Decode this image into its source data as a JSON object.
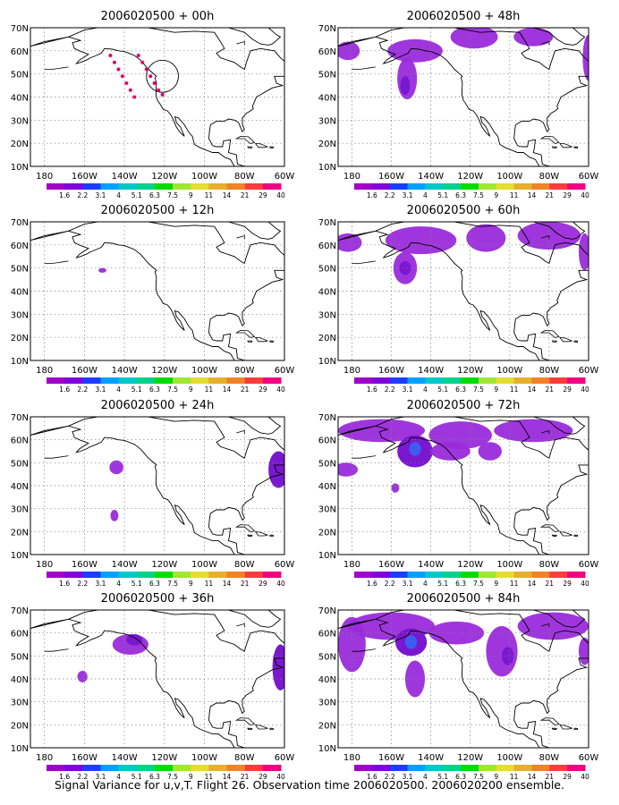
{
  "figure_caption": "Signal Variance for u,v,T. Flight 26. Observation time 2006020500. 2006020200 ensemble.",
  "shared_axes": {
    "x_ticks": [
      "180",
      "160W",
      "140W",
      "120W",
      "100W",
      "80W",
      "60W"
    ],
    "x_values": [
      -180,
      -160,
      -140,
      -120,
      -100,
      -80,
      -60
    ],
    "y_ticks": [
      "10N",
      "20N",
      "30N",
      "40N",
      "50N",
      "60N",
      "70N"
    ],
    "y_values": [
      10,
      20,
      30,
      40,
      50,
      60,
      70
    ],
    "xlim": [
      -187,
      -60
    ],
    "ylim": [
      10,
      70
    ],
    "grid": true
  },
  "colorbar": {
    "labels": [
      "1.6",
      "2.2",
      "3.1",
      "4",
      "5.1",
      "6.3",
      "7.5",
      "9",
      "11",
      "14",
      "21",
      "29",
      "40"
    ],
    "colors": [
      "#a000c8",
      "#8200dc",
      "#1e3cff",
      "#00a0ff",
      "#00c8c8",
      "#00d28c",
      "#00dc00",
      "#a0e632",
      "#e6dc32",
      "#e6af2d",
      "#f08228",
      "#fa3c3c",
      "#f00082"
    ]
  },
  "colors": {
    "signal_light": "#9a2bdb",
    "signal_medium": "#7a18cf",
    "signal_strong": "#3b5ef0",
    "observation_dots": "#e0006a",
    "coast": "#000000",
    "grid": "#808080"
  },
  "chart_data": [
    {
      "type": "heatmap",
      "title": "2006020500 + 00h",
      "region": "North America & NE Pacific",
      "observations": [
        [
          -147,
          58
        ],
        [
          -145,
          55
        ],
        [
          -143,
          52
        ],
        [
          -141,
          49
        ],
        [
          -139,
          46
        ],
        [
          -137,
          43
        ],
        [
          -133,
          58
        ],
        [
          -131,
          55
        ],
        [
          -129,
          52
        ],
        [
          -127,
          49
        ],
        [
          -125,
          46
        ],
        [
          -123,
          43
        ],
        [
          -121,
          41
        ],
        [
          -135,
          40
        ]
      ],
      "circle": {
        "center": [
          -121,
          49
        ],
        "radius_deg": 8
      },
      "blobs": []
    },
    {
      "type": "heatmap",
      "title": "2006020500 + 12h",
      "region": "North America & NE Pacific",
      "blobs": [
        {
          "lon": -151,
          "lat": 49,
          "rx": 2,
          "ry": 1,
          "level": "light"
        }
      ]
    },
    {
      "type": "heatmap",
      "title": "2006020500 + 24h",
      "region": "North America & NE Pacific",
      "blobs": [
        {
          "lon": -144,
          "lat": 48,
          "rx": 3.5,
          "ry": 3,
          "level": "light"
        },
        {
          "lon": -145,
          "lat": 27,
          "rx": 2,
          "ry": 2.5,
          "level": "light"
        },
        {
          "lon": -63,
          "lat": 47,
          "rx": 5,
          "ry": 8,
          "level": "medium"
        }
      ]
    },
    {
      "type": "heatmap",
      "title": "2006020500 + 36h",
      "region": "North America & NE Pacific",
      "blobs": [
        {
          "lon": -137,
          "lat": 55,
          "rx": 9,
          "ry": 4.5,
          "level": "light"
        },
        {
          "lon": -135,
          "lat": 57,
          "rx": 4,
          "ry": 2.5,
          "level": "medium"
        },
        {
          "lon": -161,
          "lat": 41,
          "rx": 2.5,
          "ry": 2.5,
          "level": "light"
        },
        {
          "lon": -62,
          "lat": 45,
          "rx": 4,
          "ry": 10,
          "level": "medium"
        }
      ]
    },
    {
      "type": "heatmap",
      "title": "2006020500 + 48h",
      "region": "North America & NE Pacific",
      "blobs": [
        {
          "lon": -182,
          "lat": 60,
          "rx": 6,
          "ry": 4,
          "level": "light"
        },
        {
          "lon": -148,
          "lat": 60,
          "rx": 14,
          "ry": 5,
          "level": "light"
        },
        {
          "lon": -152,
          "lat": 48,
          "rx": 5,
          "ry": 9,
          "level": "light"
        },
        {
          "lon": -153,
          "lat": 45,
          "rx": 2.5,
          "ry": 4,
          "level": "medium"
        },
        {
          "lon": -118,
          "lat": 66,
          "rx": 12,
          "ry": 5,
          "level": "light"
        },
        {
          "lon": -88,
          "lat": 66,
          "rx": 10,
          "ry": 4,
          "level": "light"
        },
        {
          "lon": -60,
          "lat": 57,
          "rx": 3,
          "ry": 10,
          "level": "light"
        }
      ]
    },
    {
      "type": "heatmap",
      "title": "2006020500 + 60h",
      "region": "North America & NE Pacific",
      "blobs": [
        {
          "lon": -182,
          "lat": 61,
          "rx": 7,
          "ry": 4,
          "level": "light"
        },
        {
          "lon": -145,
          "lat": 62,
          "rx": 18,
          "ry": 6,
          "level": "light"
        },
        {
          "lon": -153,
          "lat": 50,
          "rx": 6,
          "ry": 7,
          "level": "light"
        },
        {
          "lon": -153,
          "lat": 50,
          "rx": 3,
          "ry": 3,
          "level": "medium"
        },
        {
          "lon": -112,
          "lat": 63,
          "rx": 10,
          "ry": 6,
          "level": "light"
        },
        {
          "lon": -80,
          "lat": 64,
          "rx": 16,
          "ry": 6,
          "level": "light"
        },
        {
          "lon": -62,
          "lat": 57,
          "rx": 3,
          "ry": 8,
          "level": "light"
        }
      ]
    },
    {
      "type": "heatmap",
      "title": "2006020500 + 72h",
      "region": "North America & NE Pacific",
      "blobs": [
        {
          "lon": -165,
          "lat": 64,
          "rx": 22,
          "ry": 5,
          "level": "light"
        },
        {
          "lon": -125,
          "lat": 62,
          "rx": 16,
          "ry": 6,
          "level": "light"
        },
        {
          "lon": -148,
          "lat": 55,
          "rx": 9,
          "ry": 7,
          "level": "medium"
        },
        {
          "lon": -148,
          "lat": 56,
          "rx": 3,
          "ry": 3,
          "level": "strong"
        },
        {
          "lon": -130,
          "lat": 55,
          "rx": 10,
          "ry": 4,
          "level": "light"
        },
        {
          "lon": -183,
          "lat": 47,
          "rx": 6,
          "ry": 3,
          "level": "light"
        },
        {
          "lon": -158,
          "lat": 39,
          "rx": 2,
          "ry": 2,
          "level": "light"
        },
        {
          "lon": -88,
          "lat": 64,
          "rx": 20,
          "ry": 5,
          "level": "light"
        },
        {
          "lon": -110,
          "lat": 55,
          "rx": 6,
          "ry": 4,
          "level": "light"
        }
      ]
    },
    {
      "type": "heatmap",
      "title": "2006020500 + 84h",
      "region": "North America & NE Pacific",
      "blobs": [
        {
          "lon": -180,
          "lat": 55,
          "rx": 7,
          "ry": 12,
          "level": "light"
        },
        {
          "lon": -160,
          "lat": 63,
          "rx": 22,
          "ry": 6,
          "level": "light"
        },
        {
          "lon": -150,
          "lat": 56,
          "rx": 8,
          "ry": 6,
          "level": "medium"
        },
        {
          "lon": -150,
          "lat": 56,
          "rx": 3,
          "ry": 3,
          "level": "strong"
        },
        {
          "lon": -148,
          "lat": 40,
          "rx": 5,
          "ry": 8,
          "level": "light"
        },
        {
          "lon": -127,
          "lat": 60,
          "rx": 14,
          "ry": 5,
          "level": "light"
        },
        {
          "lon": -104,
          "lat": 52,
          "rx": 8,
          "ry": 11,
          "level": "light"
        },
        {
          "lon": -101,
          "lat": 50,
          "rx": 3,
          "ry": 4,
          "level": "medium"
        },
        {
          "lon": -78,
          "lat": 63,
          "rx": 18,
          "ry": 6,
          "level": "light"
        },
        {
          "lon": -62,
          "lat": 52,
          "rx": 3,
          "ry": 6,
          "level": "light"
        }
      ]
    }
  ]
}
